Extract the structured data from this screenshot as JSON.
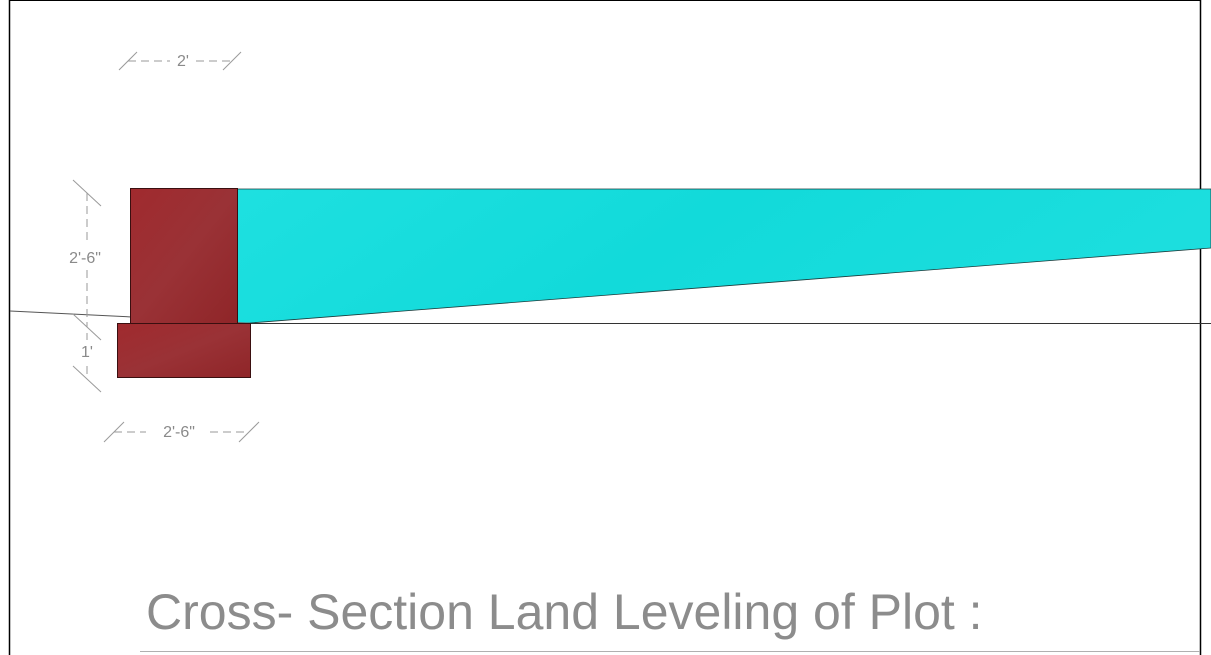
{
  "drawing": {
    "title": "Cross- Section Land Leveling of Plot :",
    "dimensions": {
      "wall_width": "2'",
      "wall_height": "2'-6\"",
      "footing_height": "1'",
      "footing_width": "2'-6\""
    },
    "colors": {
      "masonry": "#9b2a2d",
      "fill": "#19dcdc",
      "dimension": "#9a9a9a",
      "title": "#8c8c8c"
    }
  }
}
